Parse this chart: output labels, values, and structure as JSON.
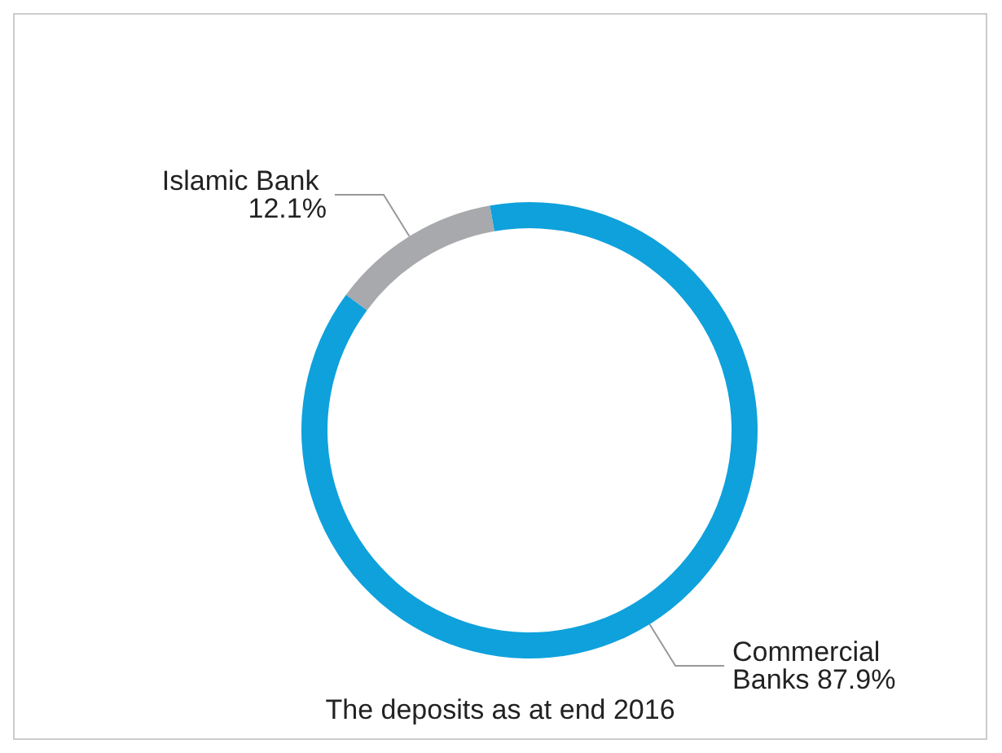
{
  "chart_data": {
    "type": "donut",
    "title": "The deposits as at end 2016",
    "categories": [
      "Islamic Bank",
      "Commercial Banks"
    ],
    "values": [
      12.1,
      87.9
    ],
    "value_labels": [
      "12.1%",
      "87.9%"
    ],
    "colors": [
      "#a7a9ac",
      "#0ea1dc"
    ]
  }
}
